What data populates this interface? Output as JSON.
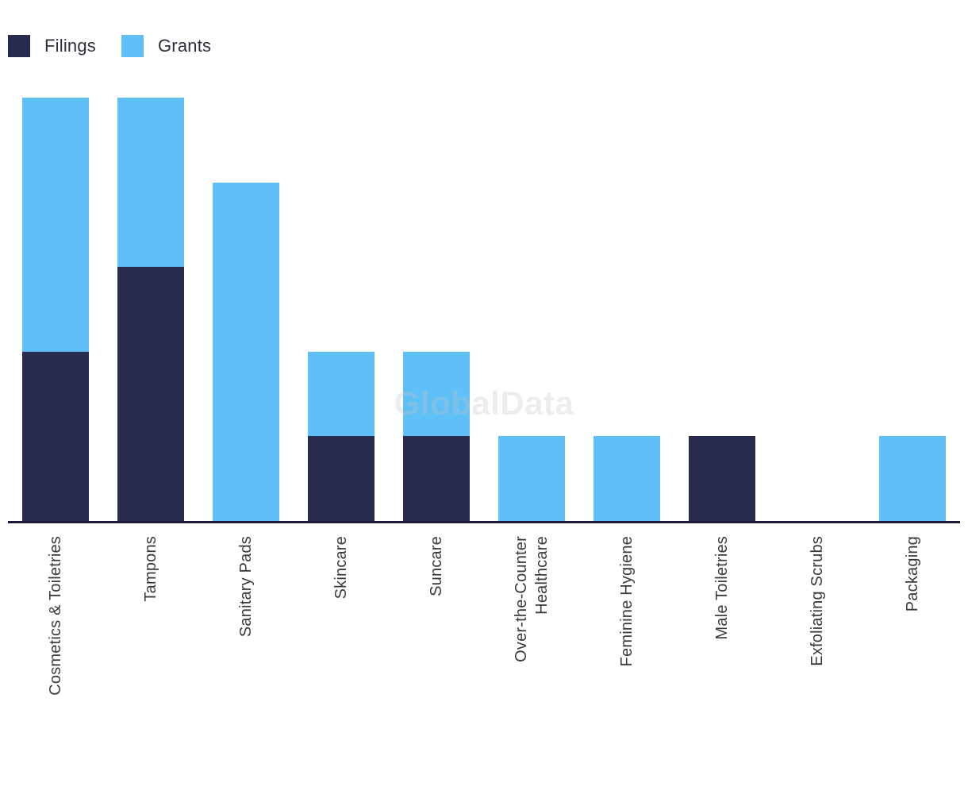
{
  "legend": {
    "items": [
      {
        "label": "Filings",
        "color": "#282A4E"
      },
      {
        "label": "Grants",
        "color": "#5FC0F7"
      }
    ]
  },
  "watermark": "GlobalData",
  "chart_data": {
    "type": "bar",
    "stacked": true,
    "title": "",
    "xlabel": "",
    "ylabel": "",
    "categories": [
      "Cosmetics & Toiletries",
      "Tampons",
      "Sanitary Pads",
      "Skincare",
      "Suncare",
      "Over-the-Counter\nHealthcare",
      "Feminine Hygiene",
      "Male Toiletries",
      "Exfoliating Scrubs",
      "Packaging"
    ],
    "series": [
      {
        "name": "Filings",
        "color": "#282A4E",
        "values": [
          2,
          3,
          0,
          1,
          1,
          0,
          0,
          1,
          0,
          0
        ]
      },
      {
        "name": "Grants",
        "color": "#5FC0F7",
        "values": [
          3,
          2,
          4,
          1,
          1,
          1,
          1,
          0,
          0,
          1
        ]
      }
    ],
    "ylim": [
      0,
      5
    ],
    "grid": false,
    "y_axis_visible": false,
    "legend_position": "top-left"
  }
}
